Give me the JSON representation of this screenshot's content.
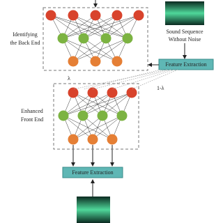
{
  "labels": {
    "back_end": [
      "Identifying",
      "the Back End"
    ],
    "front_end": [
      "Enhanced",
      "Front End"
    ],
    "clean_sound": [
      "Sound Sequence",
      "Without Noise"
    ],
    "feature_top": "Feature Extraction",
    "feature_bottom": "Feature Extraction",
    "lambda": "λ",
    "one_minus_lambda": "1-λ"
  }
}
